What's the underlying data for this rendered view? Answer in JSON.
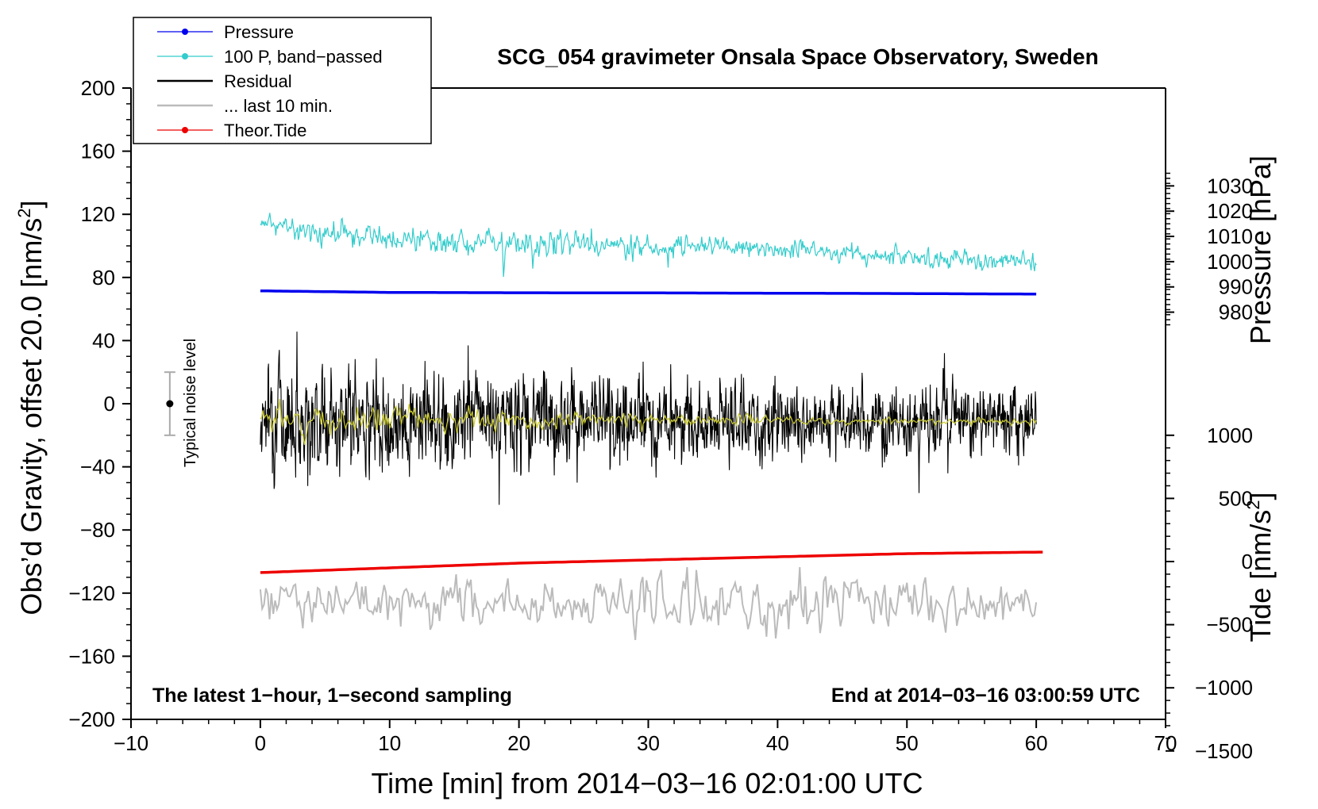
{
  "chart_data": {
    "type": "line",
    "title": "SCG_054 gravimeter Onsala Space Observatory, Sweden",
    "xlabel": "Time [min] from 2014−03−16 02:01:00 UTC",
    "ylabel_prefix": "Obs’d Gravity, offset 20.0 [nm/s",
    "ylabel_sup": "2",
    "ylabel_suffix": "]",
    "xlim": [
      -10,
      70
    ],
    "ylim": [
      -200,
      200
    ],
    "x_ticks": [
      -10,
      0,
      10,
      20,
      30,
      40,
      50,
      60,
      70
    ],
    "x_tick_labels": [
      "−10",
      "0",
      "10",
      "20",
      "30",
      "40",
      "50",
      "60",
      "70"
    ],
    "y_ticks": [
      -200,
      -160,
      -120,
      -80,
      -40,
      0,
      40,
      80,
      120,
      160,
      200
    ],
    "y_tick_labels": [
      "−200",
      "−160",
      "−120",
      "−80",
      "−40",
      "0",
      "40",
      "80",
      "120",
      "160",
      "200"
    ],
    "pressure_axis": {
      "label": "Pressure [hPa]",
      "ticks": [
        980,
        990,
        1000,
        1010,
        1020,
        1030
      ],
      "tick_labels": [
        "980",
        "990",
        "1000",
        "1010",
        "1020",
        "1030"
      ],
      "ref_hpa": 1000,
      "ref_gravity": 90,
      "gravity_per_hpa": 1.6
    },
    "tide_axis": {
      "label_prefix": "Tide [nm/s",
      "label_sup": "2",
      "label_suffix": "]",
      "ticks": [
        -1500,
        -1000,
        -500,
        0,
        500,
        1000
      ],
      "tick_labels": [
        "−1500",
        "−1000",
        "−500",
        "0",
        "500",
        "1000"
      ],
      "ref_tide": 0,
      "ref_gravity": -100,
      "gravity_per_unit": 0.08
    },
    "legend": [
      {
        "label": "Pressure",
        "color": "#0000ee",
        "marker": true
      },
      {
        "label": "100 P, band−passed",
        "color": "#33cccc",
        "marker": true
      },
      {
        "label": "Residual",
        "color": "#000000",
        "marker": false
      },
      {
        "label": "... last 10 min.",
        "color": "#bbbbbb",
        "marker": false
      },
      {
        "label": "Theor.Tide",
        "color": "#ee0000",
        "marker": true
      }
    ],
    "noise_indicator": {
      "label": "Typical noise level",
      "x": -7,
      "center": 0,
      "half_range": 20
    },
    "note_left": "The latest 1−hour, 1−second sampling",
    "note_right": "End at 2014−03−16 03:00:59 UTC",
    "series": [
      {
        "name": "Pressure",
        "color": "#0000ee",
        "style": "smooth",
        "x": [
          0,
          5,
          10,
          20,
          30,
          40,
          50,
          55,
          60
        ],
        "y": [
          71.5,
          71,
          70.5,
          70.3,
          70.2,
          70,
          69.8,
          69.6,
          69.5
        ]
      },
      {
        "name": "Theor.Tide",
        "color": "#ee0000",
        "style": "smooth",
        "x": [
          0,
          10,
          20,
          30,
          40,
          50,
          60.5
        ],
        "y": [
          -107,
          -104,
          -101,
          -99,
          -97,
          -95,
          -94
        ]
      },
      {
        "name": "100 P, band−passed",
        "color": "#33cccc",
        "style": "noisy",
        "x": [
          0,
          5,
          10,
          20,
          30,
          40,
          50,
          60
        ],
        "center": [
          115,
          108,
          104,
          101,
          100,
          98,
          93,
          90
        ],
        "amplitude": [
          6,
          8,
          7,
          8,
          7,
          6,
          6,
          6
        ],
        "seed": 11,
        "n": 900
      },
      {
        "name": "Residual",
        "color": "#000000",
        "style": "noisy",
        "x": [
          0,
          10,
          20,
          30,
          40,
          50,
          60
        ],
        "center": [
          -8,
          -9,
          -10,
          -11,
          -11,
          -11,
          -12
        ],
        "amplitude": [
          34,
          30,
          30,
          26,
          24,
          22,
          22
        ],
        "seed": 7,
        "n": 1800
      },
      {
        "name": "Residual (smoothed)",
        "color": "#cccc33",
        "style": "noisy",
        "x": [
          0,
          10,
          20,
          30,
          40,
          50,
          60
        ],
        "center": [
          -10,
          -10,
          -10,
          -10,
          -11,
          -11,
          -11
        ],
        "amplitude": [
          9,
          8,
          6,
          4,
          3,
          2,
          2
        ],
        "seed": 3,
        "n": 600
      },
      {
        "name": "... last 10 min.",
        "color": "#bbbbbb",
        "style": "noisy",
        "x": [
          0,
          10,
          20,
          30,
          40,
          50,
          60
        ],
        "center": [
          -125,
          -125,
          -125,
          -125,
          -125,
          -125,
          -125
        ],
        "amplitude": [
          14,
          16,
          15,
          19,
          18,
          18,
          14
        ],
        "seed": 19,
        "n": 420
      }
    ]
  }
}
